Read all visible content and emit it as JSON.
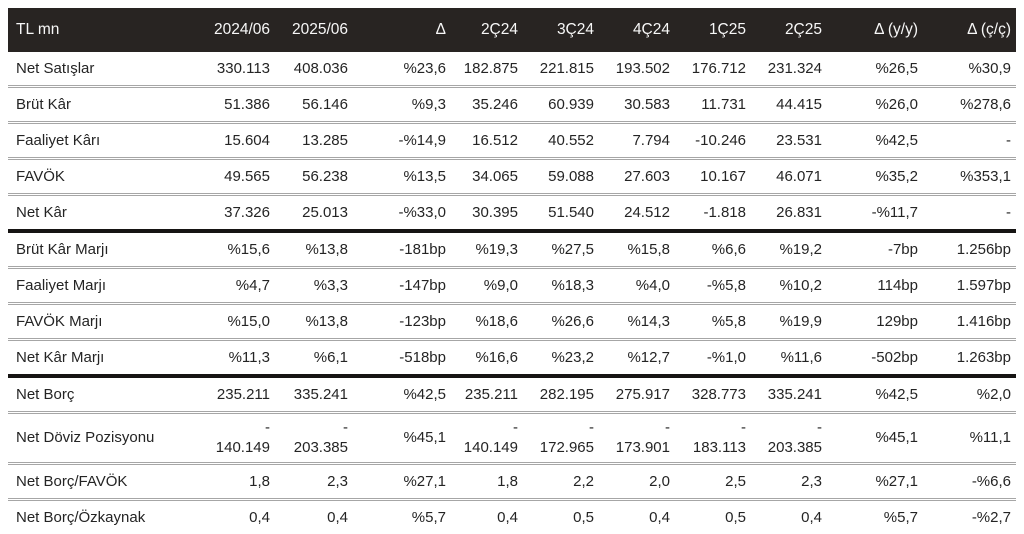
{
  "colors": {
    "header_bg": "#282422",
    "header_text": "#f7f7f7",
    "body_text": "#242424",
    "row_separator": "#a6a6a6",
    "section_divider": "#161413"
  },
  "table": {
    "unit_label": "TL mn",
    "columns": [
      "TL mn",
      "2024/06",
      "2025/06",
      "Δ",
      "2Ç24",
      "3Ç24",
      "4Ç24",
      "1Ç25",
      "2Ç25",
      "Δ (y/y)",
      "Δ (ç/ç)"
    ],
    "rows": [
      {
        "label": "Net Satışlar",
        "values": [
          "330.113",
          "408.036",
          "%23,6",
          "182.875",
          "221.815",
          "193.502",
          "176.712",
          "231.324",
          "%26,5",
          "%30,9"
        ]
      },
      {
        "label": "Brüt Kâr",
        "values": [
          "51.386",
          "56.146",
          "%9,3",
          "35.246",
          "60.939",
          "30.583",
          "11.731",
          "44.415",
          "%26,0",
          "%278,6"
        ]
      },
      {
        "label": "Faaliyet Kârı",
        "values": [
          "15.604",
          "13.285",
          "-%14,9",
          "16.512",
          "40.552",
          "7.794",
          "-10.246",
          "23.531",
          "%42,5",
          "-"
        ]
      },
      {
        "label": "FAVÖK",
        "values": [
          "49.565",
          "56.238",
          "%13,5",
          "34.065",
          "59.088",
          "27.603",
          "10.167",
          "46.071",
          "%35,2",
          "%353,1"
        ]
      },
      {
        "label": "Net Kâr",
        "thick_border_after": true,
        "values": [
          "37.326",
          "25.013",
          "-%33,0",
          "30.395",
          "51.540",
          "24.512",
          "-1.818",
          "26.831",
          "-%11,7",
          "-"
        ]
      },
      {
        "label": "Brüt Kâr Marjı",
        "values": [
          "%15,6",
          "%13,8",
          "-181bp",
          "%19,3",
          "%27,5",
          "%15,8",
          "%6,6",
          "%19,2",
          "-7bp",
          "1.256bp"
        ]
      },
      {
        "label": "Faaliyet Marjı",
        "values": [
          "%4,7",
          "%3,3",
          "-147bp",
          "%9,0",
          "%18,3",
          "%4,0",
          "-%5,8",
          "%10,2",
          "114bp",
          "1.597bp"
        ]
      },
      {
        "label": "FAVÖK Marjı",
        "values": [
          "%15,0",
          "%13,8",
          "-123bp",
          "%18,6",
          "%26,6",
          "%14,3",
          "%5,8",
          "%19,9",
          "129bp",
          "1.416bp"
        ]
      },
      {
        "label": "Net Kâr Marjı",
        "thick_border_after": true,
        "values": [
          "%11,3",
          "%6,1",
          "-518bp",
          "%16,6",
          "%23,2",
          "%12,7",
          "-%1,0",
          "%11,6",
          "-502bp",
          "1.263bp"
        ]
      },
      {
        "label": "Net Borç",
        "values": [
          "235.211",
          "335.241",
          "%42,5",
          "235.211",
          "282.195",
          "275.917",
          "328.773",
          "335.241",
          "%42,5",
          "%2,0"
        ]
      },
      {
        "label": "Net Döviz Pozisyonu",
        "tall": true,
        "values": [
          "-\n140.149",
          "-\n203.385",
          "%45,1",
          "-\n140.149",
          "-\n172.965",
          "-\n173.901",
          "-\n183.113",
          "-\n203.385",
          "%45,1",
          "%11,1"
        ]
      },
      {
        "label": "Net Borç/FAVÖK",
        "values": [
          "1,8",
          "2,3",
          "%27,1",
          "1,8",
          "2,2",
          "2,0",
          "2,5",
          "2,3",
          "%27,1",
          "-%6,6"
        ]
      },
      {
        "label": "Net Borç/Özkaynak",
        "values": [
          "0,4",
          "0,4",
          "%5,7",
          "0,4",
          "0,5",
          "0,4",
          "0,5",
          "0,4",
          "%5,7",
          "-%2,7"
        ]
      }
    ]
  }
}
